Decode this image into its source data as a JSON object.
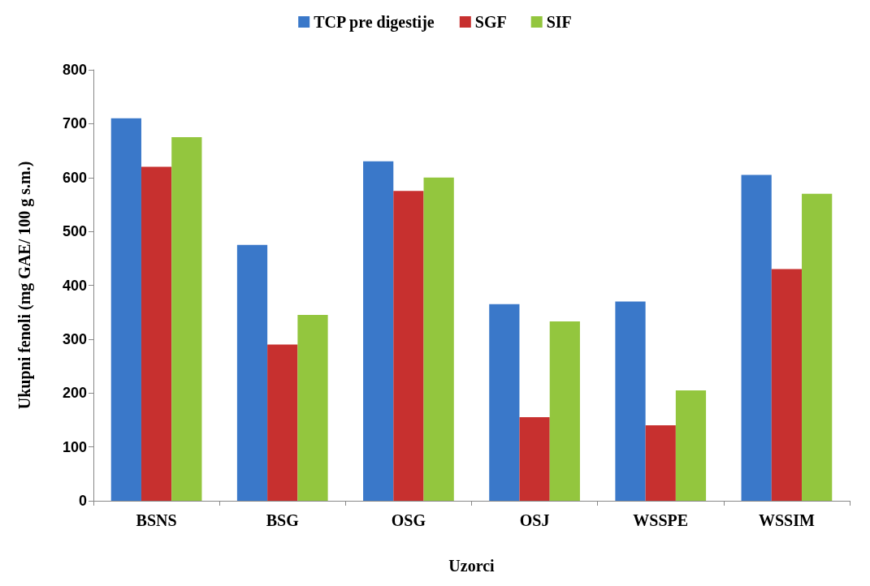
{
  "chart_data": {
    "type": "bar",
    "xlabel": "Uzorci",
    "ylabel": "Ukupni fenoli (mg GAE/ 100 g s.m.)",
    "categories": [
      "BSNS",
      "BSG",
      "OSG",
      "OSJ",
      "WSSPE",
      "WSSIM"
    ],
    "series": [
      {
        "name": "TCP pre digestije",
        "color": "#3a78c9",
        "values": [
          710,
          475,
          630,
          365,
          370,
          605
        ]
      },
      {
        "name": "SGF",
        "color": "#c7302f",
        "values": [
          620,
          290,
          575,
          155,
          140,
          430
        ]
      },
      {
        "name": "SIF",
        "color": "#93c63e",
        "values": [
          675,
          345,
          600,
          333,
          205,
          570
        ]
      }
    ],
    "ylim": [
      0,
      800
    ],
    "yticks": [
      0,
      100,
      200,
      300,
      400,
      500,
      600,
      700,
      800
    ],
    "grid": false,
    "legend": "top"
  }
}
